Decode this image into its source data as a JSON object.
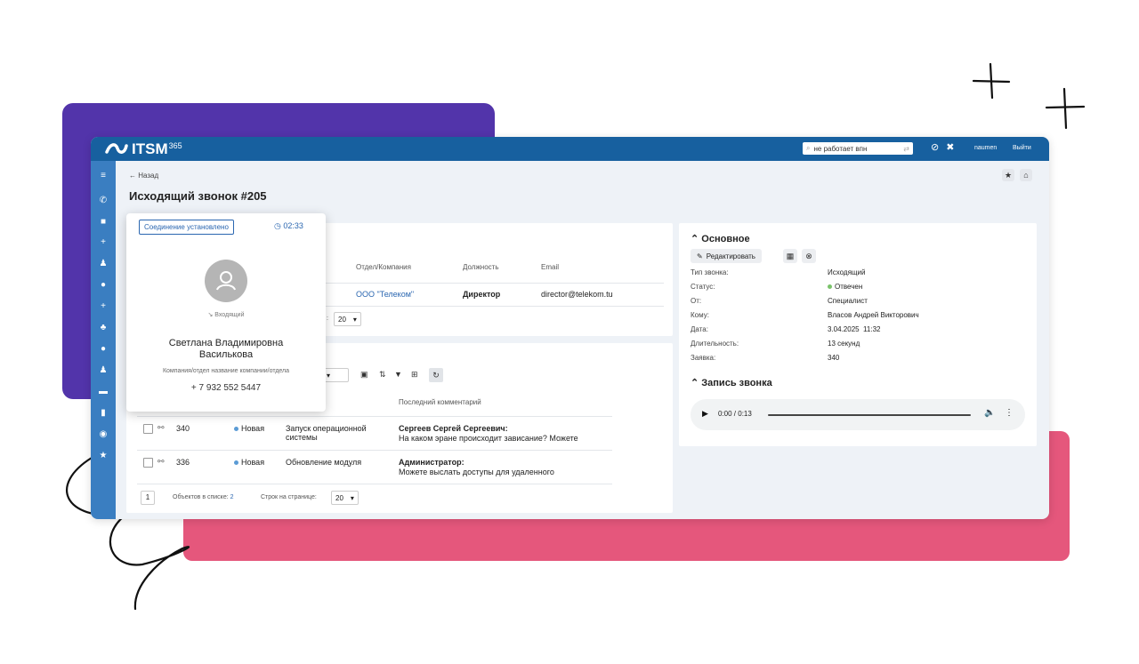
{
  "app": {
    "logo_text": "ITSM",
    "logo_sup": "365",
    "search_value": "не работает впн",
    "user": "naumen",
    "logout": "Выйти"
  },
  "page": {
    "back_label": "← Назад",
    "title": "Исходящий звонок #205"
  },
  "contacts_table": {
    "headers": [
      "Отдел/Компания",
      "Должность",
      "Email"
    ],
    "row": {
      "company": "ООО \"Телеком\"",
      "position": "Директор",
      "email": "director@telekom.tu"
    },
    "per_page_suffix": ":",
    "per_page": "20"
  },
  "requests_table": {
    "header_comment": "Последний комментарий",
    "rows": [
      {
        "id": "340",
        "status": "Новая",
        "subject_line1": "Запуск операционной",
        "subject_line2": "системы",
        "author": "Сергеев Сергей Сергеевич:",
        "comment": "На каком эране происходит зависание? Можете"
      },
      {
        "id": "336",
        "status": "Новая",
        "subject_line1": "Обновление модуля",
        "subject_line2": "",
        "author": "Администратор:",
        "comment": "Можете выслать доступы для удаленного"
      }
    ],
    "page": "1",
    "objects_label": "Объектов в списке:",
    "objects_count": "2",
    "rows_label": "Строк на странице:",
    "rows_per_page": "20",
    "status_color": "#5b9bd5"
  },
  "details": {
    "section_title": "Основное",
    "edit_label": "Редактировать",
    "fields": [
      {
        "label": "Тип звонка:",
        "value": "Исходящий"
      },
      {
        "label": "Статус:",
        "value": "Отвечен"
      },
      {
        "label": "От:",
        "value": "Специалист"
      },
      {
        "label": "Кому:",
        "value": "Власов Андрей Викторович"
      },
      {
        "label": "Дата:",
        "value": "3.04.2025  11:32"
      },
      {
        "label": "Длительность:",
        "value": "13 секунд"
      },
      {
        "label": "Заявка:",
        "value": "340"
      }
    ],
    "status_color": "#7ac36a",
    "recording_title": "Запись звонка",
    "audio_time": "0:00 / 0:13"
  },
  "popup": {
    "connection_status": "Соединение установлено",
    "timer": "02:33",
    "direction": "Входящий",
    "name_line1": "Светлана Владимировна",
    "name_line2": "Василькова",
    "company": "Компания/отдел название компании/отдела",
    "phone": "+ 7 932 552 5447"
  },
  "colors": {
    "topbar": "#17609f",
    "sidebar": "#3a7ec1",
    "deco_purple": "#5234aa",
    "deco_pink": "#e5577c"
  }
}
